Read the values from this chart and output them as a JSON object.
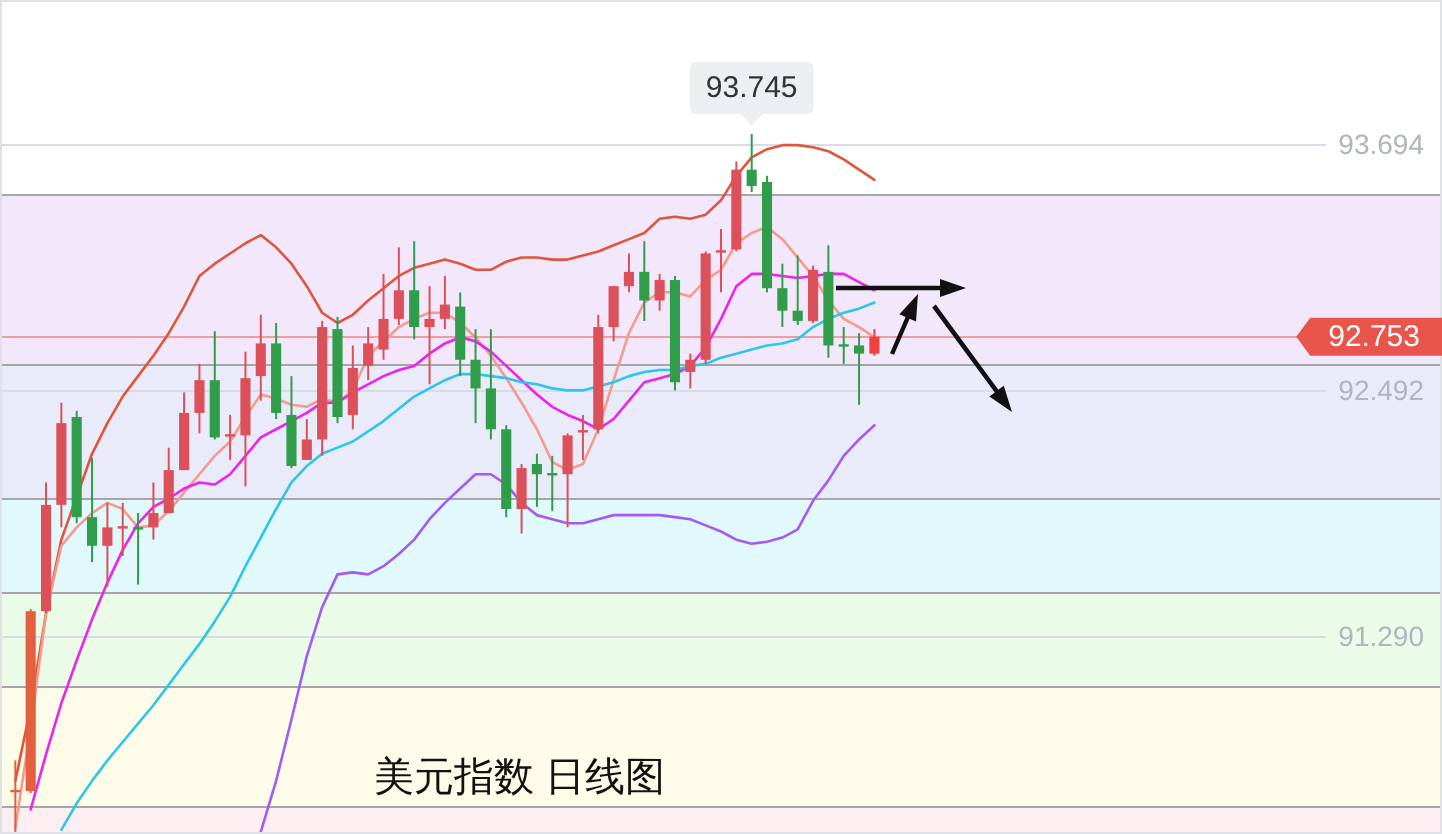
{
  "chart_data": {
    "type": "candlestick",
    "title": "美元指数 日线图",
    "categories": [
      null,
      null,
      null,
      null,
      null,
      null,
      null,
      null,
      null,
      null,
      null,
      null,
      null,
      null,
      null,
      null,
      null,
      null,
      null,
      null,
      null,
      null,
      null,
      null,
      null,
      null,
      null,
      null,
      null,
      null,
      null,
      null,
      null,
      null,
      null,
      null,
      null,
      null,
      null,
      null,
      null,
      null,
      null,
      null,
      null,
      null,
      null,
      null,
      null,
      null,
      null,
      null,
      null,
      null,
      null,
      null,
      null,
      null,
      null,
      null,
      null,
      null,
      null,
      null,
      null,
      null,
      null,
      null,
      null,
      null,
      null,
      null,
      null,
      null,
      null,
      null,
      null,
      null,
      null,
      null,
      null,
      null,
      null,
      null,
      null,
      null,
      null,
      null,
      null,
      null,
      null,
      null,
      null
    ],
    "ohlc": [
      [
        90.53,
        90.68,
        90.32,
        90.53
      ],
      [
        90.53,
        91.42,
        90.52,
        91.41
      ],
      [
        91.41,
        92.04,
        91.4,
        91.93
      ],
      [
        91.93,
        92.43,
        91.82,
        92.33
      ],
      [
        92.36,
        92.39,
        91.84,
        91.87
      ],
      [
        91.87,
        92.16,
        91.65,
        91.73
      ],
      [
        91.73,
        91.94,
        91.53,
        91.82
      ],
      [
        91.82,
        91.94,
        91.68,
        91.82
      ],
      [
        91.82,
        91.89,
        91.54,
        91.81
      ],
      [
        91.82,
        92.04,
        91.76,
        91.89
      ],
      [
        91.89,
        92.21,
        91.89,
        92.1
      ],
      [
        92.1,
        92.48,
        92.1,
        92.38
      ],
      [
        92.38,
        92.62,
        92.28,
        92.54
      ],
      [
        92.54,
        92.78,
        92.25,
        92.26
      ],
      [
        92.27,
        92.37,
        92.15,
        92.27
      ],
      [
        92.27,
        92.68,
        92.02,
        92.55
      ],
      [
        92.56,
        92.86,
        92.44,
        92.72
      ],
      [
        92.72,
        92.82,
        92.35,
        92.38
      ],
      [
        92.37,
        92.56,
        92.11,
        92.12
      ],
      [
        92.15,
        92.35,
        92.15,
        92.25
      ],
      [
        92.25,
        92.83,
        92.17,
        92.8
      ],
      [
        92.79,
        92.85,
        92.33,
        92.36
      ],
      [
        92.37,
        92.71,
        92.3,
        92.6
      ],
      [
        92.61,
        92.8,
        92.54,
        92.72
      ],
      [
        92.69,
        93.06,
        92.64,
        92.84
      ],
      [
        92.84,
        93.19,
        92.81,
        92.98
      ],
      [
        92.98,
        93.22,
        92.74,
        92.8
      ],
      [
        92.8,
        93.0,
        92.52,
        92.84
      ],
      [
        92.84,
        93.05,
        92.79,
        92.91
      ],
      [
        92.9,
        92.97,
        92.56,
        92.64
      ],
      [
        92.64,
        92.79,
        92.33,
        92.5
      ],
      [
        92.5,
        92.79,
        92.25,
        92.3
      ],
      [
        92.3,
        92.32,
        91.87,
        91.91
      ],
      [
        91.91,
        92.13,
        91.79,
        92.11
      ],
      [
        92.13,
        92.18,
        91.92,
        92.08
      ],
      [
        92.08,
        92.17,
        91.9,
        92.08
      ],
      [
        92.08,
        92.28,
        91.82,
        92.27
      ],
      [
        92.29,
        92.37,
        92.15,
        92.29
      ],
      [
        92.3,
        92.86,
        92.28,
        92.8
      ],
      [
        92.8,
        93.0,
        92.73,
        93.0
      ],
      [
        93.0,
        93.16,
        92.97,
        93.07
      ],
      [
        93.07,
        93.22,
        92.83,
        92.93
      ],
      [
        92.93,
        93.06,
        92.88,
        93.03
      ],
      [
        93.03,
        93.05,
        92.49,
        92.53
      ],
      [
        92.58,
        92.67,
        92.5,
        92.64
      ],
      [
        92.64,
        93.17,
        92.62,
        93.16
      ],
      [
        93.17,
        93.28,
        92.97,
        93.17
      ],
      [
        93.18,
        93.61,
        93.17,
        93.57
      ],
      [
        93.57,
        93.745,
        93.46,
        93.49
      ],
      [
        93.51,
        93.54,
        92.97,
        92.99
      ],
      [
        92.99,
        93.11,
        92.8,
        92.88
      ],
      [
        92.88,
        93.15,
        92.81,
        92.83
      ],
      [
        92.83,
        93.1,
        92.82,
        93.08
      ],
      [
        93.07,
        93.2,
        92.65,
        92.71
      ],
      [
        92.71,
        92.8,
        92.62,
        92.71
      ],
      [
        92.71,
        92.77,
        92.42,
        92.67
      ],
      [
        92.67,
        92.79,
        92.66,
        92.753
      ],
      null,
      null,
      null,
      null,
      null,
      null,
      null,
      null,
      null,
      null,
      null,
      null,
      null,
      null,
      null,
      null,
      null,
      null,
      null,
      null,
      null,
      null,
      null,
      null,
      null,
      null,
      null,
      null,
      null,
      null,
      null,
      null,
      null,
      null,
      null,
      null
    ],
    "colors": [
      "#e2603f",
      "#e2603f",
      "#dc5059",
      "#dc5059",
      "#2f9d4a",
      "#2f9d4a",
      "#dc5059",
      "#dc5059",
      "#2f9d4a",
      "#dc5059",
      "#dc5059",
      "#dc5059",
      "#dc5059",
      "#2f9d4a",
      "#dc5059",
      "#dc5059",
      "#dc5059",
      "#2f9d4a",
      "#2f9d4a",
      "#dc5059",
      "#dc5059",
      "#2f9d4a",
      "#dc5059",
      "#dc5059",
      "#dc5059",
      "#dc5059",
      "#2f9d4a",
      "#dc5059",
      "#dc5059",
      "#2f9d4a",
      "#2f9d4a",
      "#2f9d4a",
      "#2f9d4a",
      "#dc5059",
      "#2f9d4a",
      "#2f9d4a",
      "#dc5059",
      "#dc5059",
      "#dc5059",
      "#dc5059",
      "#dc5059",
      "#2f9d4a",
      "#dc5059",
      "#2f9d4a",
      "#dc5059",
      "#dc5059",
      "#dc5059",
      "#dc5059",
      "#2f9d4a",
      "#2f9d4a",
      "#2f9d4a",
      "#2f9d4a",
      "#dc5059",
      "#2f9d4a",
      "#2f9d4a",
      "#2f9d4a",
      "#f2403e",
      null,
      null,
      null,
      null,
      null,
      null,
      null,
      null,
      null,
      null,
      null,
      null,
      null,
      null,
      null,
      null,
      null,
      null,
      null,
      null,
      null,
      null,
      null,
      null,
      null,
      null,
      null,
      null,
      null,
      null,
      null,
      null,
      null,
      null,
      null,
      null
    ],
    "series": [
      {
        "type": "line",
        "color": "#e2553d",
        "values": [
          90.58,
          90.94,
          91.4,
          91.76,
          null,
          92.18,
          92.33,
          92.46,
          92.56,
          92.66,
          92.77,
          92.9,
          93.05,
          93.11,
          93.16,
          93.21,
          93.25,
          93.19,
          93.11,
          93.0,
          92.87,
          92.82,
          92.86,
          92.93,
          92.99,
          93.05,
          93.09,
          93.11,
          93.13,
          93.11,
          93.08,
          93.08,
          93.12,
          93.14,
          93.14,
          93.13,
          93.13,
          93.15,
          93.17,
          93.2,
          93.23,
          93.26,
          93.33,
          93.34,
          93.33,
          93.35,
          93.42,
          93.54,
          93.63,
          93.67,
          93.69,
          93.69,
          93.68,
          93.66,
          93.62,
          93.57,
          93.52,
          null,
          null,
          null,
          null,
          null,
          null,
          null,
          null,
          null,
          null,
          null,
          null,
          null,
          null,
          null,
          null,
          null,
          null,
          null,
          null,
          null,
          null,
          null,
          null,
          null,
          null,
          null,
          null,
          null,
          null,
          null,
          null,
          null,
          null,
          null,
          null
        ]
      },
      {
        "type": "line",
        "color": "#f59a8c",
        "values": [
          90.35,
          90.84,
          91.4,
          91.73,
          91.82,
          91.89,
          91.94,
          91.91,
          91.82,
          91.83,
          91.9,
          91.99,
          92.08,
          92.17,
          92.24,
          92.36,
          92.47,
          92.45,
          92.42,
          92.41,
          92.45,
          92.43,
          92.49,
          92.66,
          92.73,
          92.8,
          92.84,
          92.87,
          92.87,
          92.82,
          92.75,
          92.66,
          92.55,
          92.43,
          92.3,
          92.14,
          92.1,
          92.13,
          92.3,
          92.54,
          92.77,
          92.92,
          92.97,
          92.97,
          92.95,
          93.03,
          93.08,
          93.21,
          93.26,
          93.29,
          93.23,
          93.14,
          93.05,
          92.93,
          92.84,
          92.8,
          92.75,
          null,
          null,
          null,
          null,
          null,
          null,
          null,
          null,
          null,
          null,
          null,
          null,
          null,
          null,
          null,
          null,
          null,
          null,
          null,
          null,
          null,
          null,
          null,
          null,
          null,
          null,
          null,
          null,
          null,
          null,
          null,
          null,
          null,
          null,
          null,
          null
        ]
      },
      {
        "type": "line",
        "color": "#ee22ee",
        "values": [
          null,
          90.44,
          90.71,
          90.96,
          91.17,
          91.37,
          91.55,
          91.71,
          91.84,
          91.92,
          91.96,
          92.01,
          92.04,
          92.03,
          92.08,
          92.17,
          92.26,
          92.3,
          92.34,
          92.38,
          92.43,
          92.43,
          92.48,
          92.52,
          92.56,
          92.59,
          92.61,
          92.67,
          92.72,
          92.75,
          92.73,
          92.68,
          92.61,
          92.54,
          92.47,
          92.41,
          92.37,
          92.34,
          92.3,
          92.35,
          92.44,
          92.53,
          92.55,
          92.57,
          92.61,
          92.7,
          92.84,
          93.0,
          93.06,
          93.06,
          93.05,
          93.04,
          93.05,
          93.06,
          93.06,
          93.02,
          92.98,
          null,
          null,
          null,
          null,
          null,
          null,
          null,
          null,
          null,
          null,
          null,
          null,
          null,
          null,
          null,
          null,
          null,
          null,
          null,
          null,
          null,
          null,
          null,
          null,
          null,
          null,
          null,
          null,
          null,
          null,
          null,
          null,
          null,
          null,
          null,
          null
        ]
      },
      {
        "type": "line",
        "color": "#2ec5ea",
        "values": [
          null,
          null,
          null,
          90.34,
          90.47,
          90.58,
          90.68,
          90.77,
          90.86,
          90.95,
          91.05,
          91.15,
          91.25,
          91.36,
          91.48,
          91.63,
          91.77,
          91.91,
          92.04,
          92.12,
          92.18,
          92.21,
          92.24,
          92.29,
          92.34,
          92.4,
          92.46,
          92.5,
          92.54,
          92.57,
          92.57,
          92.56,
          92.55,
          92.53,
          92.52,
          92.5,
          92.49,
          92.49,
          92.51,
          92.53,
          92.56,
          92.58,
          92.59,
          92.59,
          92.61,
          92.62,
          92.65,
          92.67,
          92.69,
          92.71,
          92.72,
          92.74,
          92.8,
          92.84,
          92.87,
          92.89,
          92.92,
          null,
          null,
          null,
          null,
          null,
          null,
          null,
          null,
          null,
          null,
          null,
          null,
          null,
          null,
          null,
          null,
          null,
          null,
          null,
          null,
          null,
          null,
          null,
          null,
          null,
          null,
          null,
          null,
          null,
          null,
          null,
          null,
          null,
          null,
          null,
          null
        ]
      },
      {
        "type": "line",
        "color": "#a25cf2",
        "values": [
          null,
          null,
          null,
          null,
          null,
          null,
          null,
          null,
          null,
          null,
          null,
          null,
          null,
          null,
          null,
          null,
          90.33,
          90.58,
          90.88,
          91.19,
          91.43,
          91.59,
          91.6,
          91.59,
          91.63,
          91.69,
          91.76,
          91.86,
          91.94,
          92.01,
          92.08,
          92.08,
          92.03,
          91.94,
          91.88,
          91.86,
          91.84,
          91.84,
          91.86,
          91.88,
          91.88,
          91.88,
          91.88,
          91.87,
          91.86,
          91.83,
          91.8,
          91.76,
          91.74,
          91.75,
          91.77,
          91.81,
          91.95,
          92.05,
          92.17,
          92.25,
          92.32,
          null,
          null,
          null,
          null,
          null,
          null,
          null,
          null,
          null,
          null,
          null,
          null,
          null,
          null,
          null,
          null,
          null,
          null,
          null,
          null,
          null,
          null,
          null,
          null,
          null,
          null,
          null,
          null,
          null,
          null,
          null,
          null,
          null,
          null,
          null,
          null
        ]
      }
    ],
    "ylim": [
      90.32,
      94.4
    ],
    "yticks": [
      93.694,
      92.492,
      {
        "value": 91.29,
        "label": "91.290"
      }
    ],
    "tick_labels": "y",
    "grid": "y",
    "bands": [
      {
        "axis": "y",
        "from": 93.45,
        "to": 92.62,
        "color": "#f3e7fb"
      },
      {
        "axis": "y",
        "from": 92.62,
        "to": 91.96,
        "color": "#e9ebfb"
      },
      {
        "axis": "y",
        "from": 91.96,
        "to": 91.5,
        "color": "#e1f8fc"
      },
      {
        "axis": "y",
        "from": 91.5,
        "to": 91.04,
        "color": "#eafbe8"
      },
      {
        "axis": "y",
        "from": 91.04,
        "to": 90.46,
        "color": "#fdfce8"
      },
      {
        "axis": "y",
        "from": 90.46,
        "to": 90.32,
        "color": "#fdeff1"
      }
    ],
    "ref_lines": [
      {
        "axis": "y",
        "value": 93.45,
        "color": "#a6a6a6"
      },
      {
        "axis": "y",
        "value": 92.62,
        "color": "#a6a6a6"
      },
      {
        "axis": "y",
        "value": 91.96,
        "color": "#a6a6a6"
      },
      {
        "axis": "y",
        "value": 91.5,
        "color": "#a6a6a6"
      },
      {
        "axis": "y",
        "value": 91.04,
        "color": "#a6a6a6"
      },
      {
        "axis": "y",
        "value": 90.46,
        "color": "#a6a6a6"
      },
      {
        "axis": "y",
        "value": 92.753,
        "label": "92.753",
        "color": "#e9544b"
      }
    ],
    "annotations": [
      {
        "text": "93.745",
        "y": 93.745
      }
    ]
  }
}
